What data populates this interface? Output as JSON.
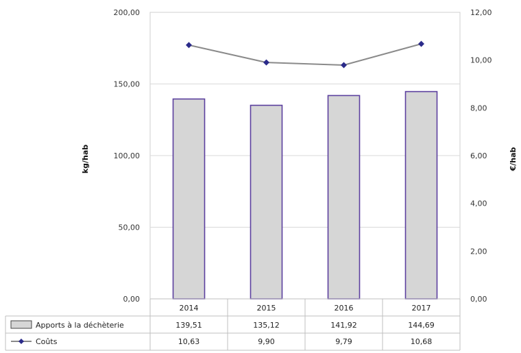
{
  "chart_data": {
    "type": "bar",
    "categories": [
      "2014",
      "2015",
      "2016",
      "2017"
    ],
    "series": [
      {
        "name": "Apports à la déchèterie",
        "type": "bar",
        "axis": "left",
        "values": [
          139.51,
          135.12,
          141.92,
          144.69
        ],
        "labels": [
          "139,51",
          "135,12",
          "141,92",
          "144,69"
        ],
        "color": "#d6d6d6",
        "border_color": "#5b3f9e"
      },
      {
        "name": "Coûts",
        "type": "line",
        "axis": "right",
        "values": [
          10.63,
          9.9,
          9.79,
          10.68
        ],
        "labels": [
          "10,63",
          "9,90",
          "9,79",
          "10,68"
        ],
        "color": "#8a8a8a",
        "marker_color": "#2b2b8a"
      }
    ],
    "ylabel": "kg/hab",
    "y2label": "€/hab",
    "ylim": [
      0,
      200
    ],
    "y2lim": [
      0,
      12
    ],
    "yticks": [
      "0,00",
      "50,00",
      "100,00",
      "150,00",
      "200,00"
    ],
    "y2ticks": [
      "0,00",
      "2,00",
      "4,00",
      "6,00",
      "8,00",
      "10,00",
      "12,00"
    ],
    "grid": true,
    "legend": "data-table-below"
  }
}
